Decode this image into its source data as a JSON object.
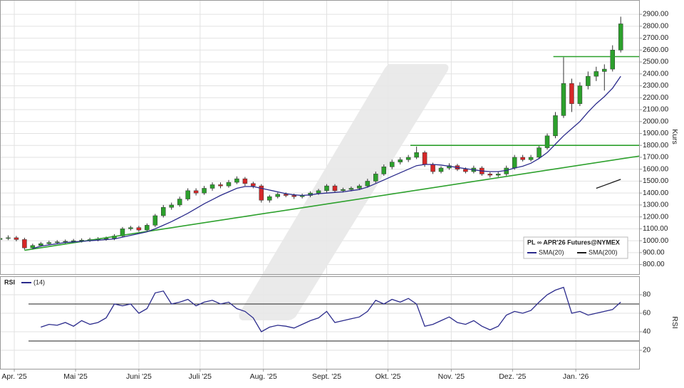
{
  "chart_data": [
    {
      "type": "candlestick",
      "legend_title": "PL ∞ APR'26 Futures@NYMEX",
      "ylabel": "Kurs",
      "up_color": "#2ca02c",
      "down_color": "#d62728",
      "grid": true,
      "xlim": [
        -7,
        306
      ],
      "ylim": [
        720,
        3020
      ],
      "yticks": [
        {
          "value": 800,
          "label": "800.00"
        },
        {
          "value": 900,
          "label": "900.00"
        },
        {
          "value": 1000,
          "label": "1000.00"
        },
        {
          "value": 1100,
          "label": "1100.00"
        },
        {
          "value": 1200,
          "label": "1200.00"
        },
        {
          "value": 1300,
          "label": "1300.00"
        },
        {
          "value": 1400,
          "label": "1400.00"
        },
        {
          "value": 1500,
          "label": "1500.00"
        },
        {
          "value": 1600,
          "label": "1600.00"
        },
        {
          "value": 1700,
          "label": "1700.00"
        },
        {
          "value": 1800,
          "label": "1800.00"
        },
        {
          "value": 1900,
          "label": "1900.00"
        },
        {
          "value": 2000,
          "label": "2000.00"
        },
        {
          "value": 2100,
          "label": "2100.00"
        },
        {
          "value": 2200,
          "label": "2200.00"
        },
        {
          "value": 2300,
          "label": "2300.00"
        },
        {
          "value": 2400,
          "label": "2400.00"
        },
        {
          "value": 2500,
          "label": "2500.00"
        },
        {
          "value": 2600,
          "label": "2600.00"
        },
        {
          "value": 2700,
          "label": "2700.00"
        },
        {
          "value": 2800,
          "label": "2800.00"
        },
        {
          "value": 2900,
          "label": "2900.00"
        }
      ],
      "x": [
        -7,
        -3,
        1,
        5,
        9,
        13,
        17,
        21,
        25,
        29,
        33,
        37,
        41,
        45,
        49,
        53,
        57,
        61,
        65,
        69,
        73,
        77,
        81,
        85,
        89,
        93,
        97,
        101,
        105,
        109,
        113,
        117,
        121,
        125,
        129,
        133,
        137,
        141,
        145,
        149,
        153,
        157,
        161,
        165,
        169,
        173,
        177,
        181,
        185,
        189,
        193,
        197,
        201,
        205,
        209,
        213,
        217,
        221,
        225,
        229,
        233,
        237,
        241,
        245,
        249,
        253,
        257,
        261,
        265,
        269,
        273,
        277,
        281,
        285,
        289,
        293,
        297
      ],
      "open": [
        1010,
        1020,
        1025,
        1010,
        940,
        960,
        975,
        985,
        990,
        995,
        1000,
        1005,
        1010,
        1015,
        1020,
        1040,
        1100,
        1110,
        1090,
        1130,
        1210,
        1280,
        1300,
        1350,
        1420,
        1400,
        1440,
        1470,
        1460,
        1490,
        1520,
        1480,
        1460,
        1340,
        1370,
        1390,
        1380,
        1370,
        1380,
        1400,
        1420,
        1460,
        1420,
        1430,
        1440,
        1460,
        1500,
        1560,
        1620,
        1660,
        1680,
        1700,
        1740,
        1640,
        1580,
        1610,
        1630,
        1600,
        1580,
        1610,
        1560,
        1550,
        1560,
        1610,
        1700,
        1680,
        1700,
        1780,
        1880,
        2050,
        2320,
        2150,
        2300,
        2380,
        2420,
        2440,
        2600
      ],
      "high": [
        1040,
        1045,
        1040,
        1025,
        975,
        990,
        1000,
        1005,
        1010,
        1015,
        1020,
        1025,
        1030,
        1035,
        1055,
        1115,
        1125,
        1125,
        1145,
        1225,
        1300,
        1320,
        1370,
        1440,
        1440,
        1460,
        1490,
        1490,
        1510,
        1540,
        1535,
        1495,
        1475,
        1385,
        1405,
        1405,
        1395,
        1395,
        1415,
        1435,
        1475,
        1475,
        1445,
        1455,
        1475,
        1520,
        1580,
        1640,
        1680,
        1700,
        1720,
        1790,
        1755,
        1655,
        1625,
        1650,
        1645,
        1615,
        1630,
        1625,
        1575,
        1580,
        1630,
        1720,
        1720,
        1720,
        1800,
        1900,
        2080,
        2540,
        2360,
        2330,
        2420,
        2460,
        2480,
        2640,
        2880
      ],
      "low": [
        995,
        1005,
        995,
        925,
        925,
        950,
        965,
        970,
        975,
        980,
        985,
        990,
        995,
        1000,
        1005,
        1030,
        1085,
        1075,
        1075,
        1115,
        1195,
        1260,
        1285,
        1335,
        1380,
        1385,
        1420,
        1440,
        1445,
        1475,
        1460,
        1440,
        1320,
        1320,
        1355,
        1365,
        1350,
        1355,
        1365,
        1385,
        1405,
        1405,
        1405,
        1415,
        1425,
        1445,
        1485,
        1545,
        1600,
        1640,
        1660,
        1685,
        1620,
        1560,
        1565,
        1595,
        1585,
        1565,
        1565,
        1545,
        1530,
        1535,
        1545,
        1595,
        1665,
        1665,
        1685,
        1765,
        1860,
        2030,
        2080,
        2130,
        2270,
        2340,
        2260,
        2420,
        2580
      ],
      "close": [
        1020,
        1025,
        1010,
        940,
        960,
        975,
        985,
        990,
        995,
        1000,
        1005,
        1010,
        1015,
        1020,
        1040,
        1100,
        1110,
        1090,
        1130,
        1210,
        1280,
        1300,
        1350,
        1420,
        1400,
        1440,
        1470,
        1460,
        1490,
        1520,
        1480,
        1460,
        1340,
        1370,
        1390,
        1380,
        1370,
        1380,
        1400,
        1420,
        1460,
        1420,
        1430,
        1440,
        1460,
        1500,
        1560,
        1620,
        1660,
        1680,
        1700,
        1740,
        1640,
        1580,
        1610,
        1630,
        1600,
        1580,
        1610,
        1560,
        1550,
        1560,
        1610,
        1700,
        1680,
        1700,
        1780,
        1880,
        2050,
        2320,
        2150,
        2300,
        2380,
        2420,
        2440,
        2600,
        2820
      ],
      "series": [
        {
          "name": "SMA(20)",
          "color": "#2b2b8c",
          "values": [
            null,
            null,
            null,
            null,
            935,
            955,
            965,
            975,
            985,
            990,
            995,
            1000,
            1005,
            1010,
            1015,
            1030,
            1045,
            1060,
            1075,
            1100,
            1130,
            1160,
            1195,
            1230,
            1270,
            1310,
            1345,
            1380,
            1410,
            1440,
            1455,
            1455,
            1440,
            1425,
            1410,
            1395,
            1385,
            1380,
            1385,
            1395,
            1400,
            1405,
            1410,
            1420,
            1430,
            1450,
            1480,
            1510,
            1540,
            1570,
            1600,
            1630,
            1640,
            1640,
            1635,
            1625,
            1615,
            1605,
            1595,
            1585,
            1580,
            1580,
            1590,
            1610,
            1625,
            1650,
            1690,
            1740,
            1810,
            1880,
            1940,
            2000,
            2080,
            2150,
            2210,
            2280,
            2380
          ]
        },
        {
          "name": "SMA(200)",
          "color": "#1a1a1a",
          "values": [
            null,
            null,
            null,
            null,
            null,
            null,
            null,
            null,
            null,
            null,
            null,
            null,
            null,
            null,
            null,
            null,
            null,
            null,
            null,
            null,
            null,
            null,
            null,
            null,
            null,
            null,
            null,
            null,
            null,
            null,
            null,
            null,
            null,
            null,
            null,
            null,
            null,
            null,
            null,
            null,
            null,
            null,
            null,
            null,
            null,
            null,
            null,
            null,
            null,
            null,
            null,
            null,
            null,
            null,
            null,
            null,
            null,
            null,
            null,
            null,
            null,
            null,
            null,
            null,
            null,
            null,
            null,
            null,
            null,
            null,
            null,
            null,
            null,
            1440,
            1465,
            1490,
            1515
          ]
        }
      ],
      "trendlines": [
        {
          "color": "#2ca02c",
          "x": [
            5,
            306
          ],
          "y": [
            920,
            1710
          ]
        },
        {
          "color": "#2ca02c",
          "x": [
            194,
            306
          ],
          "y": [
            1800,
            1800
          ]
        },
        {
          "color": "#2ca02c",
          "x": [
            264,
            306
          ],
          "y": [
            2545,
            2545
          ]
        }
      ]
    },
    {
      "type": "line",
      "title": "RSI",
      "ylabel": "RSI",
      "grid": true,
      "xlim": [
        -7,
        306
      ],
      "ylim": [
        0,
        100
      ],
      "yticks": [
        20,
        40,
        60,
        80
      ],
      "levels": [
        70,
        30
      ],
      "xticks": [
        {
          "value": 0,
          "label": "Apr. '25"
        },
        {
          "value": 30,
          "label": "Mai '25"
        },
        {
          "value": 61,
          "label": "Juni '25"
        },
        {
          "value": 91,
          "label": "Juli '25"
        },
        {
          "value": 122,
          "label": "Aug. '25"
        },
        {
          "value": 153,
          "label": "Sept. '25"
        },
        {
          "value": 183,
          "label": "Okt. '25"
        },
        {
          "value": 214,
          "label": "Nov. '25"
        },
        {
          "value": 244,
          "label": "Dez. '25"
        },
        {
          "value": 275,
          "label": "Jan. '26"
        }
      ],
      "x": [
        -7,
        -3,
        1,
        5,
        9,
        13,
        17,
        21,
        25,
        29,
        33,
        37,
        41,
        45,
        49,
        53,
        57,
        61,
        65,
        69,
        73,
        77,
        81,
        85,
        89,
        93,
        97,
        101,
        105,
        109,
        113,
        117,
        121,
        125,
        129,
        133,
        137,
        141,
        145,
        149,
        153,
        157,
        161,
        165,
        169,
        173,
        177,
        181,
        185,
        189,
        193,
        197,
        201,
        205,
        209,
        213,
        217,
        221,
        225,
        229,
        233,
        237,
        241,
        245,
        249,
        253,
        257,
        261,
        265,
        269,
        273,
        277,
        281,
        285,
        289,
        293,
        297
      ],
      "series": [
        {
          "name": "(14)",
          "color": "#2b2b8c",
          "values": [
            null,
            null,
            null,
            null,
            null,
            45,
            48,
            47,
            50,
            46,
            52,
            48,
            50,
            55,
            70,
            68,
            70,
            60,
            65,
            82,
            84,
            70,
            72,
            75,
            68,
            72,
            74,
            70,
            72,
            65,
            62,
            55,
            40,
            45,
            47,
            46,
            44,
            48,
            52,
            55,
            62,
            50,
            52,
            54,
            56,
            62,
            74,
            70,
            75,
            72,
            76,
            70,
            46,
            48,
            52,
            56,
            50,
            48,
            52,
            46,
            42,
            46,
            58,
            62,
            60,
            63,
            72,
            80,
            85,
            88,
            60,
            62,
            58,
            60,
            62,
            64,
            72
          ]
        }
      ]
    }
  ]
}
